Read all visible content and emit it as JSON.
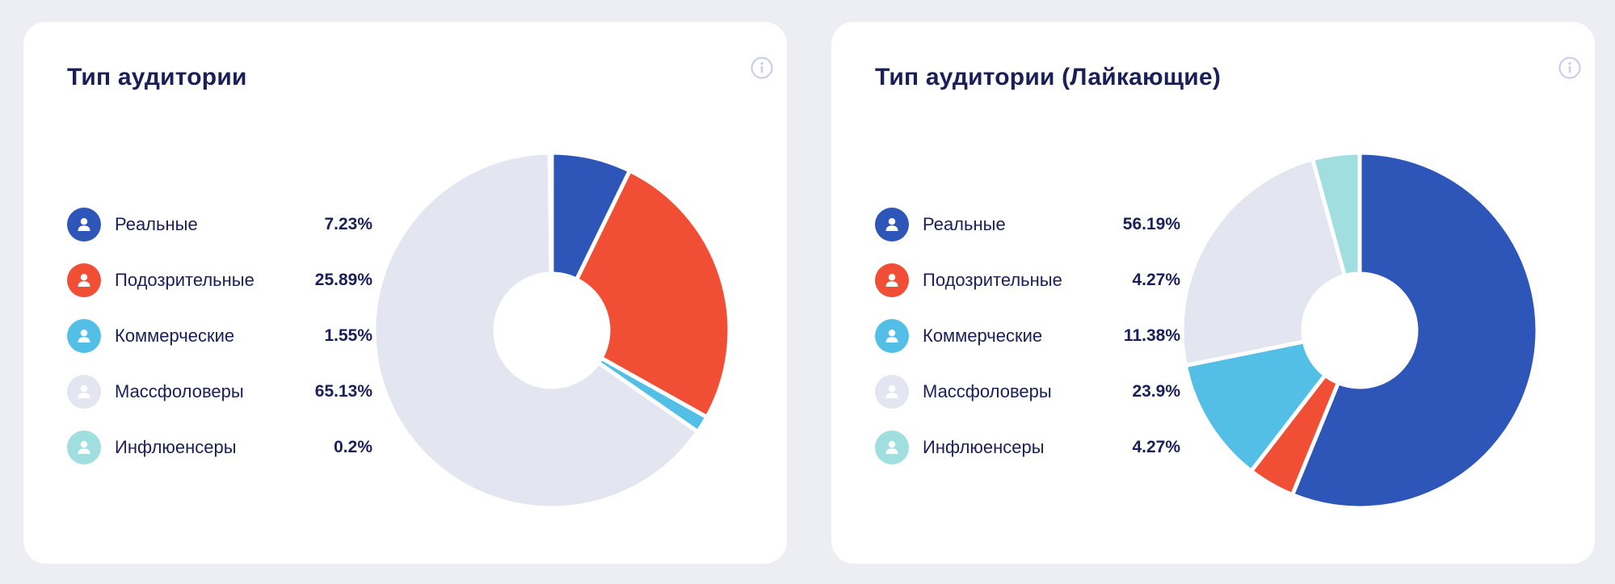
{
  "chart_data": [
    {
      "type": "pie",
      "title": "Тип аудитории",
      "hole": true,
      "start_angle_deg": 0,
      "slices": [
        {
          "label": "Реальные",
          "value": 7.23,
          "value_label": "7.23%",
          "color": "#2e55b8"
        },
        {
          "label": "Подозрительные",
          "value": 25.89,
          "value_label": "25.89%",
          "color": "#f04e35"
        },
        {
          "label": "Коммерческие",
          "value": 1.55,
          "value_label": "1.55%",
          "color": "#53bfe6"
        },
        {
          "label": "Массфоловеры",
          "value": 65.13,
          "value_label": "65.13%",
          "color": "#e3e5f0"
        },
        {
          "label": "Инфлюенсеры",
          "value": 0.2,
          "value_label": "0.2%",
          "color": "#a1dedf"
        }
      ]
    },
    {
      "type": "pie",
      "title": "Тип аудитории (Лайкающие)",
      "hole": true,
      "start_angle_deg": 0,
      "slices": [
        {
          "label": "Реальные",
          "value": 56.19,
          "value_label": "56.19%",
          "color": "#2e55b8"
        },
        {
          "label": "Подозрительные",
          "value": 4.27,
          "value_label": "4.27%",
          "color": "#f04e35"
        },
        {
          "label": "Коммерческие",
          "value": 11.38,
          "value_label": "11.38%",
          "color": "#53bfe6"
        },
        {
          "label": "Массфоловеры",
          "value": 23.9,
          "value_label": "23.9%",
          "color": "#e3e5f0"
        },
        {
          "label": "Инфлюенсеры",
          "value": 4.27,
          "value_label": "4.27%",
          "color": "#a1dedf"
        }
      ]
    }
  ],
  "icons": {
    "info": "info-icon",
    "legend": "user-icon"
  },
  "colors": {
    "background": "#eceef3",
    "card": "#ffffff",
    "text": "#1b1f57",
    "icon_outline": "#c5cbea"
  }
}
